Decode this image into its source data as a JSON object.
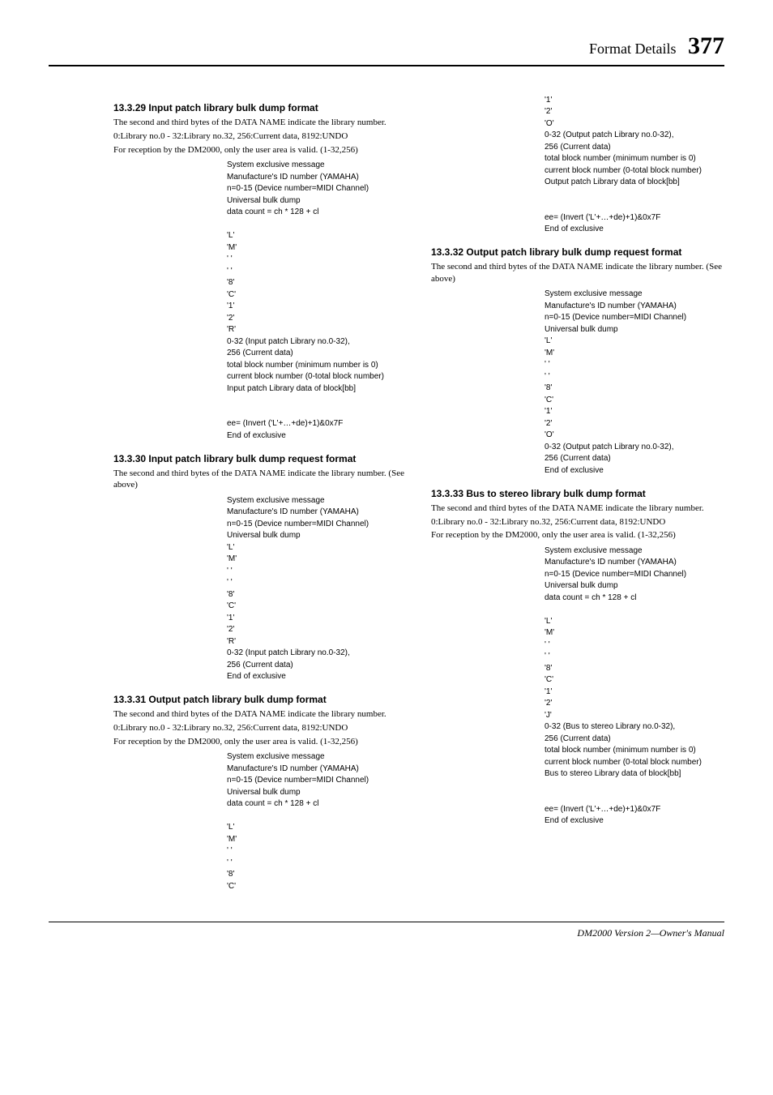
{
  "header": {
    "title": "Format Details",
    "pagenum": "377"
  },
  "footer": {
    "text": "DM2000 Version 2—Owner's Manual"
  },
  "sections": [
    {
      "title": "13.3.29 Input patch library bulk dump format",
      "column": "left",
      "desc": [
        "The second and third bytes of the DATA NAME indicate the library number.",
        "0:Library no.0 - 32:Library no.32, 256:Current data, 8192:UNDO",
        "For reception by the DM2000, only the user area is valid. (1-32,256)"
      ],
      "rows": [
        "System exclusive message",
        "Manufacture's ID number (YAMAHA)",
        "n=0-15 (Device number=MIDI Channel)",
        "Universal bulk dump",
        "data count = ch * 128 + cl",
        "",
        "'L'",
        "'M'",
        "' '",
        "' '",
        "'8'",
        "'C'",
        "'1'",
        "'2'",
        "'R'",
        "0-32 (Input patch Library no.0-32),",
        "256 (Current data)",
        "total block number (minimum number is 0)",
        "current block number (0-total block number)",
        "Input patch Library data of block[bb]",
        "",
        "",
        "ee= (Invert ('L'+…+de)+1)&0x7F",
        "End of exclusive"
      ]
    },
    {
      "title": "13.3.30 Input patch library bulk dump request format",
      "column": "left",
      "desc": [
        "The second and third bytes of the DATA NAME indicate the library number. (See above)"
      ],
      "rows": [
        "System exclusive message",
        "Manufacture's ID number (YAMAHA)",
        "n=0-15 (Device number=MIDI Channel)",
        "Universal bulk dump",
        "'L'",
        "'M'",
        "' '",
        "' '",
        "'8'",
        "'C'",
        "'1'",
        "'2'",
        "'R'",
        "0-32 (Input patch Library no.0-32),",
        "256 (Current data)",
        "End of exclusive"
      ]
    },
    {
      "title": "13.3.31 Output patch library bulk dump format",
      "column": "left",
      "desc": [
        "The second and third bytes of the DATA NAME indicate the library number.",
        "0:Library no.0 - 32:Library no.32, 256:Current data, 8192:UNDO",
        "For reception by the DM2000, only the user area is valid. (1-32,256)"
      ],
      "rows": [
        "System exclusive message",
        "Manufacture's ID number (YAMAHA)",
        "n=0-15 (Device number=MIDI Channel)",
        "Universal bulk dump",
        "data count = ch * 128 + cl",
        "",
        "'L'",
        "'M'",
        "' '",
        "' '",
        "'8'",
        "'C'"
      ]
    },
    {
      "title": "",
      "column": "right",
      "desc": [],
      "rows": [
        "'1'",
        "'2'",
        "'O'",
        "0-32 (Output patch Library no.0-32),",
        "256 (Current data)",
        "total block number (minimum number is 0)",
        "current block number (0-total block number)",
        "Output patch Library data of block[bb]",
        "",
        "",
        "ee= (Invert ('L'+…+de)+1)&0x7F",
        "End of exclusive"
      ]
    },
    {
      "title": "13.3.32 Output patch library bulk dump request format",
      "column": "right",
      "desc": [
        "The second and third bytes of the DATA NAME indicate the library number. (See above)"
      ],
      "rows": [
        "System exclusive message",
        "Manufacture's ID number (YAMAHA)",
        "n=0-15 (Device number=MIDI Channel)",
        "Universal bulk dump",
        "'L'",
        "'M'",
        "' '",
        "' '",
        "'8'",
        "'C'",
        "'1'",
        "'2'",
        "'O'",
        "0-32 (Output patch Library no.0-32),",
        "256 (Current data)",
        "End of exclusive"
      ]
    },
    {
      "title": "13.3.33 Bus to stereo library bulk dump format",
      "column": "right",
      "desc": [
        "The second and third bytes of the DATA NAME indicate the library number.",
        "0:Library no.0 - 32:Library no.32, 256:Current data, 8192:UNDO",
        "For reception by the DM2000, only the user area is valid. (1-32,256)"
      ],
      "rows": [
        "System exclusive message",
        "Manufacture's ID number (YAMAHA)",
        "n=0-15 (Device number=MIDI Channel)",
        "Universal bulk dump",
        "data count = ch * 128 + cl",
        "",
        "'L'",
        "'M'",
        "' '",
        "' '",
        "'8'",
        "'C'",
        "'1'",
        "'2'",
        "'J'",
        "0-32 (Bus to stereo Library no.0-32),",
        "256 (Current data)",
        "total block number (minimum number is 0)",
        "current block number (0-total block number)",
        "Bus to stereo Library data of block[bb]",
        "",
        "",
        "ee= (Invert ('L'+…+de)+1)&0x7F",
        "End of exclusive"
      ]
    }
  ]
}
